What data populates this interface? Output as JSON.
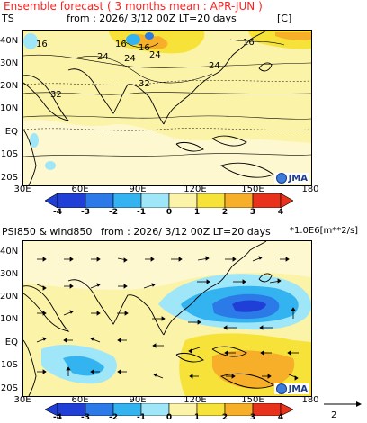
{
  "figure": {
    "title": "Ensemble forecast ( 3 months mean : APR-JUN )",
    "units_vector_scale": "2"
  },
  "panels": [
    {
      "id": "ts",
      "header_left": "TS",
      "header_mid": "from : 2026/ 3/12 00Z LT=20 days",
      "header_right": "[C]",
      "lat_labels": [
        "40N",
        "30N",
        "20N",
        "10N",
        "EQ",
        "10S",
        "20S"
      ],
      "lon_labels": [
        "30E",
        "60E",
        "90E",
        "120E",
        "150E",
        "180"
      ],
      "contour_labels": [
        "16",
        "16",
        "24",
        "16",
        "24",
        "32",
        "32",
        "24",
        "16",
        "24"
      ],
      "colorbar_labels": [
        "-4",
        "-3",
        "-2",
        "-1",
        "0",
        "1",
        "2",
        "3",
        "4"
      ],
      "logo": "JMA"
    },
    {
      "id": "psi",
      "header_left": "PSI850 & wind850",
      "header_mid": "from : 2026/ 3/12 00Z LT=20 days",
      "header_right": "*1.0E6[m**2/s]",
      "lat_labels": [
        "40N",
        "30N",
        "20N",
        "10N",
        "EQ",
        "10S",
        "20S"
      ],
      "lon_labels": [
        "30E",
        "60E",
        "90E",
        "120E",
        "150E",
        "180"
      ],
      "colorbar_labels": [
        "-4",
        "-3",
        "-2",
        "-1",
        "0",
        "1",
        "2",
        "3",
        "4"
      ],
      "logo": "JMA"
    }
  ],
  "colors": {
    "cb": [
      "#1f3fd6",
      "#2c7ae8",
      "#33b4f0",
      "#9fe6f8",
      "#ffffff",
      "#fbf3a8",
      "#f7e23a",
      "#f7ae28",
      "#e8321c"
    ],
    "land_outline": "#000000",
    "title_red": "#ff2020"
  }
}
